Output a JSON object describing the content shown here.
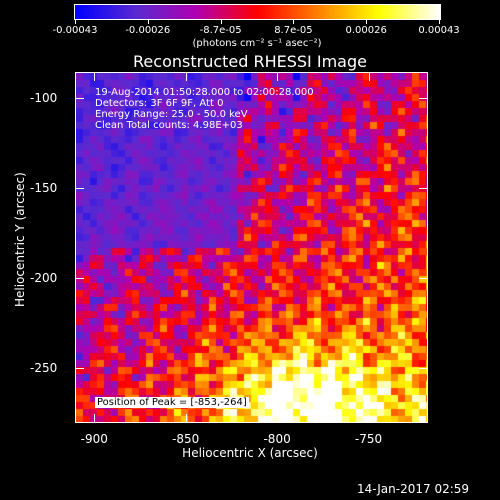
{
  "colorbar": {
    "tick_labels": [
      "-0.00043",
      "-0.00026",
      "-8.7e-05",
      "8.7e-05",
      "0.00026",
      "0.00043"
    ],
    "units": "(photons cm⁻² s⁻¹ asec⁻²)",
    "range": [
      -0.00043,
      0.00043
    ]
  },
  "plot": {
    "title": "Reconstructed RHESSI Image",
    "info_lines": [
      "19-Aug-2014 01:50:28.000 to 02:00:28.000",
      "Detectors: 3F 6F 9F, Att 0",
      "Energy Range: 25.0 - 50.0 keV",
      "Clean     Total counts: 4.98E+03"
    ],
    "peak_label": "Position of Peak = [-853,-264]"
  },
  "chart_data": {
    "type": "heatmap",
    "title": "Reconstructed RHESSI Image",
    "xlabel": "Heliocentric X (arcsec)",
    "ylabel": "Heliocentric Y (arcsec)",
    "xlim": [
      -910,
      -718
    ],
    "ylim": [
      -280,
      -86
    ],
    "x_ticks": [
      -900,
      -850,
      -800,
      -750
    ],
    "y_ticks": [
      -100,
      -150,
      -200,
      -250
    ],
    "colormap": "rhessi red-temperature (blue-purple-red-orange-yellow-white)",
    "color_stops": [
      "#0000ff",
      "#5a2ad0",
      "#b000b0",
      "#ff0000",
      "#ff8000",
      "#ffff00",
      "#ffffff"
    ],
    "peak_position": [
      -853,
      -264
    ]
  },
  "footer": {
    "date": "14-Jan-2017 02:59"
  }
}
